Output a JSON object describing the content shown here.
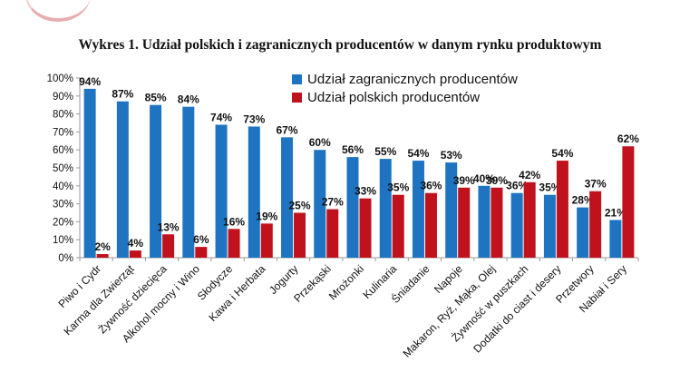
{
  "chart_data": {
    "type": "bar",
    "title": "Wykres 1. Udział polskich i zagranicznych producentów w danym rynku produktowym",
    "categories": [
      "Piwo i Cydr",
      "Karma dla Zwierząt",
      "Żywność dziecięca",
      "Alkohol mocny i Wino",
      "Słodycze",
      "Kawa i Herbata",
      "Jogurty",
      "Przekąski",
      "Mrożonki",
      "Kulinaria",
      "Śniadanie",
      "Napoje",
      "Makaron, Ryż, Mąka, Olej",
      "Żywność w puszkach",
      "Dodatki do ciast i desery",
      "Przetwory",
      "Nabiał i Sery"
    ],
    "series": [
      {
        "name": "Udział zagranicznych producentów",
        "color": "#1f74c2",
        "values": [
          94,
          87,
          85,
          84,
          74,
          73,
          67,
          60,
          56,
          55,
          54,
          53,
          40,
          36,
          35,
          28,
          21
        ],
        "labels": [
          "94%",
          "87%",
          "85%",
          "84%",
          "74%",
          "73%",
          "67%",
          "60%",
          "56%",
          "55%",
          "54%",
          "53%",
          "40%",
          "36%",
          "35%",
          "28%",
          "21%"
        ]
      },
      {
        "name": "Udział polskich producentów",
        "color": "#c0121c",
        "values": [
          2,
          4,
          13,
          6,
          16,
          19,
          25,
          27,
          33,
          35,
          36,
          39,
          39,
          42,
          54,
          37,
          62
        ],
        "labels": [
          "2%",
          "4%",
          "13%",
          "6%",
          "16%",
          "19%",
          "25%",
          "27%",
          "33%",
          "35%",
          "36%",
          "39%",
          "39%",
          "42%",
          "54%",
          "37%",
          "62%"
        ]
      }
    ],
    "ylim": [
      0,
      100
    ],
    "yticks": [
      0,
      10,
      20,
      30,
      40,
      50,
      60,
      70,
      80,
      90,
      100
    ],
    "ytick_labels": [
      "0%",
      "10%",
      "20%",
      "30%",
      "40%",
      "50%",
      "60%",
      "70%",
      "80%",
      "90%",
      "100%"
    ],
    "legend_position": "top-center",
    "grid": false
  }
}
